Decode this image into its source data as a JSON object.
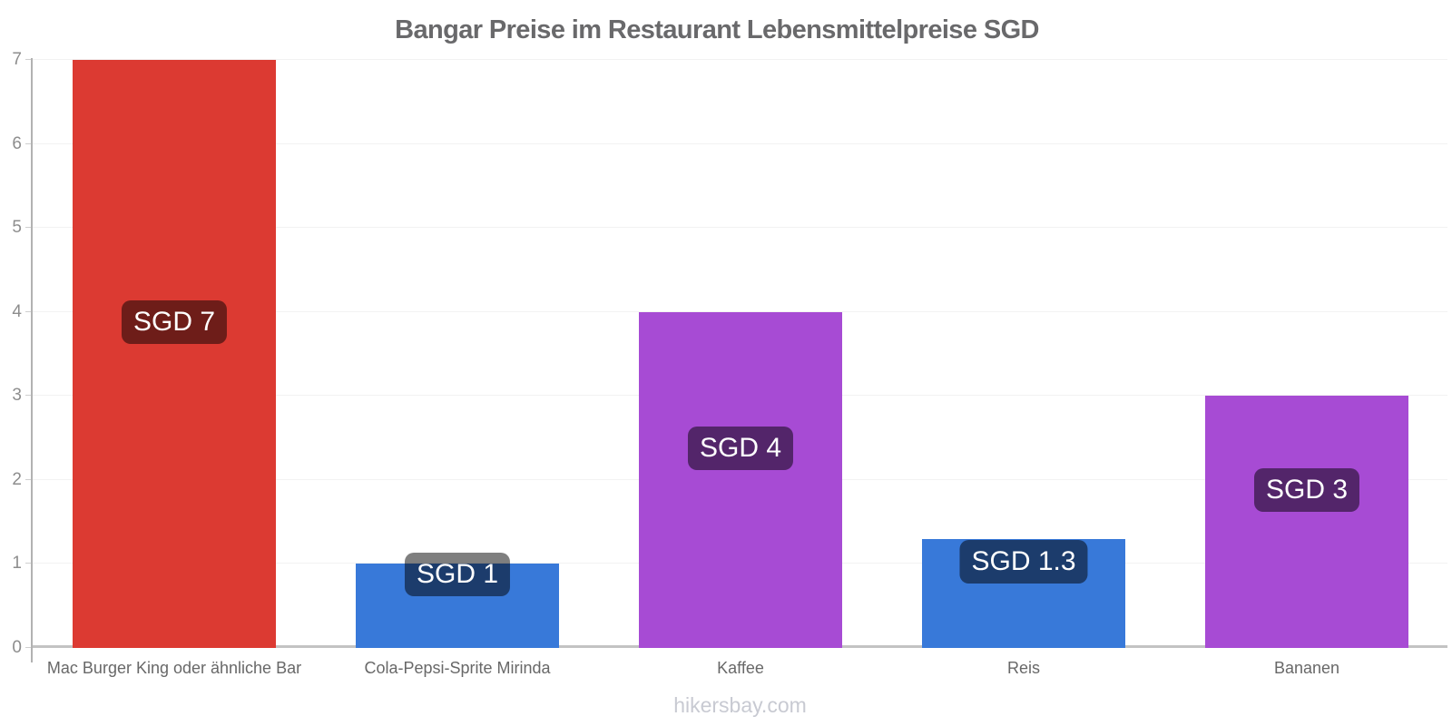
{
  "chart_data": {
    "type": "bar",
    "title": "Bangar Preise im Restaurant Lebensmittelpreise SGD",
    "currency": "SGD",
    "categories": [
      "Mac Burger King oder ähnliche Bar",
      "Cola-Pepsi-Sprite Mirinda",
      "Kaffee",
      "Reis",
      "Bananen"
    ],
    "values": [
      7,
      1,
      4,
      1.3,
      3
    ],
    "value_labels": [
      "SGD 7",
      "SGD 1",
      "SGD 4",
      "SGD 1.3",
      "SGD 3"
    ],
    "bar_colors": [
      "#dc3a32",
      "#3879d9",
      "#a74bd4",
      "#3879d9",
      "#a74bd4"
    ],
    "y_ticks": [
      0,
      1,
      2,
      3,
      4,
      5,
      6,
      7
    ],
    "ylim": [
      0,
      7
    ],
    "xlabel": "",
    "ylabel": "",
    "grid": "horizontal",
    "legend_position": "none",
    "value_label_style": {
      "background": "rgba(0,0,0,0.5)",
      "text_color": "#ffffff"
    }
  },
  "footer": {
    "text": "hikersbay.com"
  },
  "colors": {
    "background": "#ffffff",
    "title_text": "#69696b",
    "y_axis_line": "#b2b2b2",
    "x_axis_line": "#c3c3c3",
    "gridline": "#f2f2f2",
    "y_tick_label": "#8d8d8d",
    "x_tick_label": "#686868",
    "footer_text": "#c8cad2"
  }
}
